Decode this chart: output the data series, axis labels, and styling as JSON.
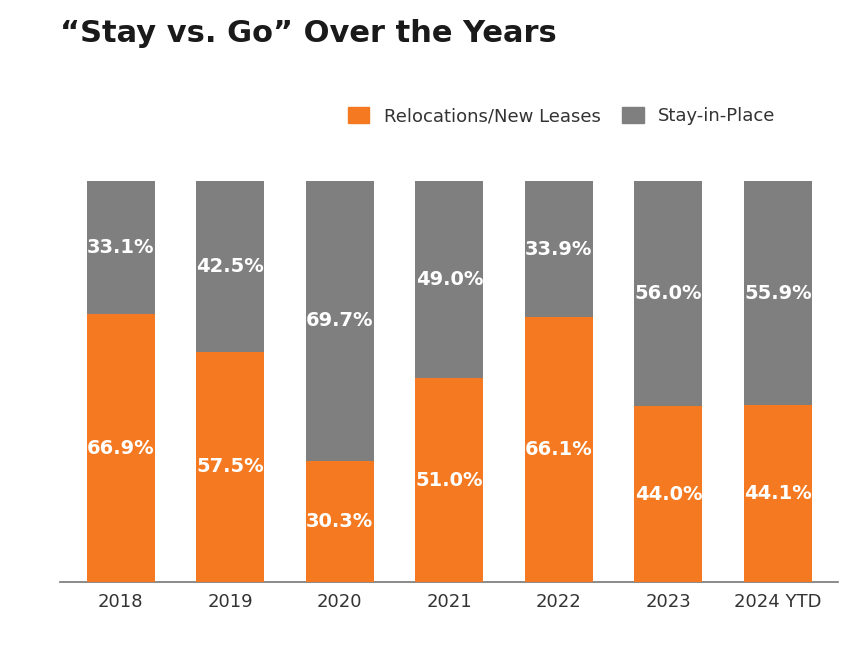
{
  "title": "“Stay vs. Go” Over the Years",
  "categories": [
    "2018",
    "2019",
    "2020",
    "2021",
    "2022",
    "2023",
    "2024 YTD"
  ],
  "relocations": [
    66.9,
    57.5,
    30.3,
    51.0,
    66.1,
    44.0,
    44.1
  ],
  "stay_in_place": [
    33.1,
    42.5,
    69.7,
    49.0,
    33.9,
    56.0,
    55.9
  ],
  "relocation_color": "#F47920",
  "stay_color": "#7F7F7F",
  "background_color": "#FFFFFF",
  "title_fontsize": 22,
  "label_fontsize": 14,
  "tick_fontsize": 13,
  "legend_fontsize": 13,
  "legend_labels": [
    "Relocations/New Leases",
    "Stay-in-Place"
  ],
  "bar_width": 0.62,
  "ylim": [
    0,
    100
  ]
}
